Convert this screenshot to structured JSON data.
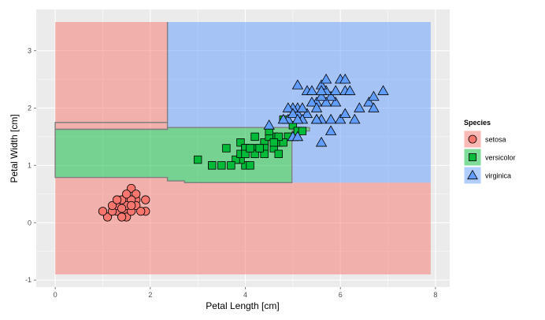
{
  "chart_data": {
    "type": "scatter",
    "title": "",
    "xlabel": "Petal Length [cm]",
    "ylabel": "Petal Width [cm]",
    "xlim": [
      -0.4,
      8.3
    ],
    "ylim": [
      -1.12,
      3.72
    ],
    "xticks": [
      0,
      2,
      4,
      6,
      8
    ],
    "yticks": [
      -1,
      0,
      1,
      2,
      3
    ],
    "grid": true,
    "legend": {
      "title": "Species",
      "position": "right"
    },
    "colors": {
      "setosa": "#F8766D",
      "versicolor": "#00BA38",
      "virginica": "#619CFF",
      "panel": "#EBEBEB",
      "grid": "#FFFFFF",
      "boundary": "#7F7F7F"
    },
    "regions": [
      {
        "species": "setosa",
        "polygon": [
          [
            0,
            -0.9
          ],
          [
            7.9,
            -0.9
          ],
          [
            7.9,
            0.7
          ],
          [
            4.98,
            0.7
          ],
          [
            2.72,
            0.7
          ],
          [
            2.72,
            0.73
          ],
          [
            2.36,
            0.73
          ],
          [
            2.36,
            0.79
          ],
          [
            0,
            0.79
          ]
        ]
      },
      {
        "species": "versicolor",
        "polygon": [
          [
            0,
            0.79
          ],
          [
            2.36,
            0.79
          ],
          [
            2.36,
            0.73
          ],
          [
            2.72,
            0.73
          ],
          [
            2.72,
            0.7
          ],
          [
            4.98,
            0.7
          ],
          [
            4.98,
            1.6
          ],
          [
            5.35,
            1.6
          ],
          [
            5.35,
            1.66
          ],
          [
            2.36,
            1.66
          ],
          [
            2.36,
            1.63
          ],
          [
            0,
            1.63
          ]
        ]
      },
      {
        "species": "setosa",
        "polygon": [
          [
            0,
            1.63
          ],
          [
            2.36,
            1.63
          ],
          [
            2.36,
            1.66
          ],
          [
            2.36,
            1.75
          ],
          [
            0,
            1.75
          ]
        ]
      },
      {
        "species": "setosa",
        "polygon": [
          [
            0,
            1.75
          ],
          [
            2.36,
            1.75
          ],
          [
            2.36,
            3.5
          ],
          [
            0,
            3.5
          ]
        ]
      },
      {
        "species": "virginica",
        "polygon": [
          [
            2.36,
            1.75
          ],
          [
            2.36,
            1.66
          ],
          [
            5.35,
            1.66
          ],
          [
            5.35,
            1.6
          ],
          [
            4.98,
            1.6
          ],
          [
            4.98,
            0.7
          ],
          [
            7.9,
            0.7
          ],
          [
            7.9,
            3.5
          ],
          [
            2.36,
            3.5
          ]
        ]
      }
    ],
    "series": [
      {
        "name": "setosa",
        "shape": "circle",
        "points": [
          [
            1.4,
            0.2
          ],
          [
            1.3,
            0.2
          ],
          [
            1.5,
            0.2
          ],
          [
            1.7,
            0.4
          ],
          [
            1.4,
            0.3
          ],
          [
            1.5,
            0.1
          ],
          [
            1.1,
            0.1
          ],
          [
            1.2,
            0.2
          ],
          [
            1.6,
            0.2
          ],
          [
            1.9,
            0.2
          ],
          [
            1.6,
            0.6
          ],
          [
            1.9,
            0.4
          ],
          [
            1.7,
            0.3
          ],
          [
            1.5,
            0.4
          ],
          [
            1.3,
            0.3
          ],
          [
            1.4,
            0.1
          ],
          [
            1.0,
            0.2
          ],
          [
            1.7,
            0.5
          ],
          [
            1.6,
            0.4
          ],
          [
            1.5,
            0.3
          ],
          [
            1.2,
            0.3
          ],
          [
            1.4,
            0.4
          ],
          [
            1.3,
            0.4
          ],
          [
            1.6,
            0.3
          ],
          [
            1.8,
            0.2
          ],
          [
            1.5,
            0.5
          ],
          [
            1.4,
            0.25
          ]
        ]
      },
      {
        "name": "versicolor",
        "shape": "square",
        "points": [
          [
            4.7,
            1.4
          ],
          [
            4.5,
            1.5
          ],
          [
            4.9,
            1.5
          ],
          [
            4.0,
            1.3
          ],
          [
            4.6,
            1.5
          ],
          [
            3.3,
            1.0
          ],
          [
            4.6,
            1.3
          ],
          [
            3.9,
            1.4
          ],
          [
            3.5,
            1.0
          ],
          [
            4.2,
            1.5
          ],
          [
            4.0,
            1.0
          ],
          [
            4.7,
            1.4
          ],
          [
            3.6,
            1.3
          ],
          [
            4.4,
            1.4
          ],
          [
            4.1,
            1.0
          ],
          [
            4.5,
            1.5
          ],
          [
            3.9,
            1.1
          ],
          [
            4.8,
            1.8
          ],
          [
            4.0,
            1.3
          ],
          [
            4.9,
            1.5
          ],
          [
            4.7,
            1.2
          ],
          [
            4.3,
            1.3
          ],
          [
            4.4,
            1.4
          ],
          [
            4.8,
            1.4
          ],
          [
            5.0,
            1.7
          ],
          [
            4.5,
            1.5
          ],
          [
            3.8,
            1.1
          ],
          [
            3.7,
            1.0
          ],
          [
            3.9,
            1.2
          ],
          [
            5.1,
            1.6
          ],
          [
            4.5,
            1.6
          ],
          [
            4.7,
            1.5
          ],
          [
            4.4,
            1.3
          ],
          [
            4.1,
            1.3
          ],
          [
            4.0,
            1.3
          ],
          [
            4.4,
            1.2
          ],
          [
            4.6,
            1.4
          ],
          [
            4.0,
            1.2
          ],
          [
            3.3,
            1.0
          ],
          [
            4.2,
            1.3
          ],
          [
            4.2,
            1.2
          ],
          [
            4.3,
            1.3
          ],
          [
            3.0,
            1.1
          ],
          [
            4.1,
            1.3
          ],
          [
            5.2,
            1.6
          ]
        ]
      },
      {
        "name": "virginica",
        "shape": "triangle",
        "points": [
          [
            6.0,
            2.5
          ],
          [
            5.1,
            1.9
          ],
          [
            5.9,
            2.1
          ],
          [
            5.6,
            1.8
          ],
          [
            5.8,
            2.2
          ],
          [
            6.6,
            2.1
          ],
          [
            4.5,
            1.7
          ],
          [
            6.3,
            1.8
          ],
          [
            5.8,
            1.8
          ],
          [
            6.1,
            2.5
          ],
          [
            5.1,
            2.0
          ],
          [
            5.3,
            1.9
          ],
          [
            5.5,
            2.1
          ],
          [
            5.0,
            2.0
          ],
          [
            5.1,
            2.4
          ],
          [
            5.3,
            2.3
          ],
          [
            5.5,
            1.8
          ],
          [
            6.7,
            2.2
          ],
          [
            6.9,
            2.3
          ],
          [
            5.0,
            1.5
          ],
          [
            5.7,
            2.3
          ],
          [
            4.9,
            2.0
          ],
          [
            6.7,
            2.0
          ],
          [
            4.9,
            1.8
          ],
          [
            5.7,
            2.1
          ],
          [
            6.0,
            1.8
          ],
          [
            4.8,
            1.8
          ],
          [
            5.8,
            1.6
          ],
          [
            6.1,
            1.9
          ],
          [
            6.4,
            2.0
          ],
          [
            5.6,
            2.2
          ],
          [
            5.1,
            1.5
          ],
          [
            5.6,
            1.4
          ],
          [
            6.1,
            2.3
          ],
          [
            5.6,
            2.4
          ],
          [
            5.5,
            1.8
          ],
          [
            5.4,
            2.1
          ],
          [
            5.4,
            2.3
          ],
          [
            5.6,
            2.3
          ],
          [
            5.2,
            2.0
          ],
          [
            5.7,
            2.5
          ],
          [
            5.5,
            2.0
          ],
          [
            6.2,
            2.3
          ],
          [
            5.9,
            2.3
          ],
          [
            5.2,
            1.8
          ],
          [
            5.0,
            1.9
          ],
          [
            5.1,
            1.8
          ]
        ]
      }
    ]
  }
}
